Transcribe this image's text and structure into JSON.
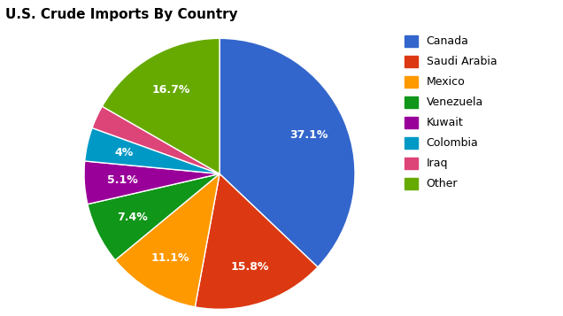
{
  "chart_data": {
    "type": "pie",
    "title": "U.S. Crude Imports By Country",
    "categories": [
      "Canada",
      "Saudi Arabia",
      "Mexico",
      "Venezuela",
      "Kuwait",
      "Colombia",
      "Iraq",
      "Other"
    ],
    "values": [
      37.1,
      15.8,
      11.1,
      7.4,
      5.1,
      4,
      2.8,
      16.7
    ],
    "value_labels": [
      "37.1%",
      "15.8%",
      "11.1%",
      "7.4%",
      "5.1%",
      "4%",
      null,
      "16.7%"
    ],
    "colors": [
      "#3366cc",
      "#dc3912",
      "#ff9900",
      "#109618",
      "#990099",
      "#0099c6",
      "#dd4477",
      "#66aa00"
    ],
    "data_labels": true,
    "legend": "upper right"
  }
}
